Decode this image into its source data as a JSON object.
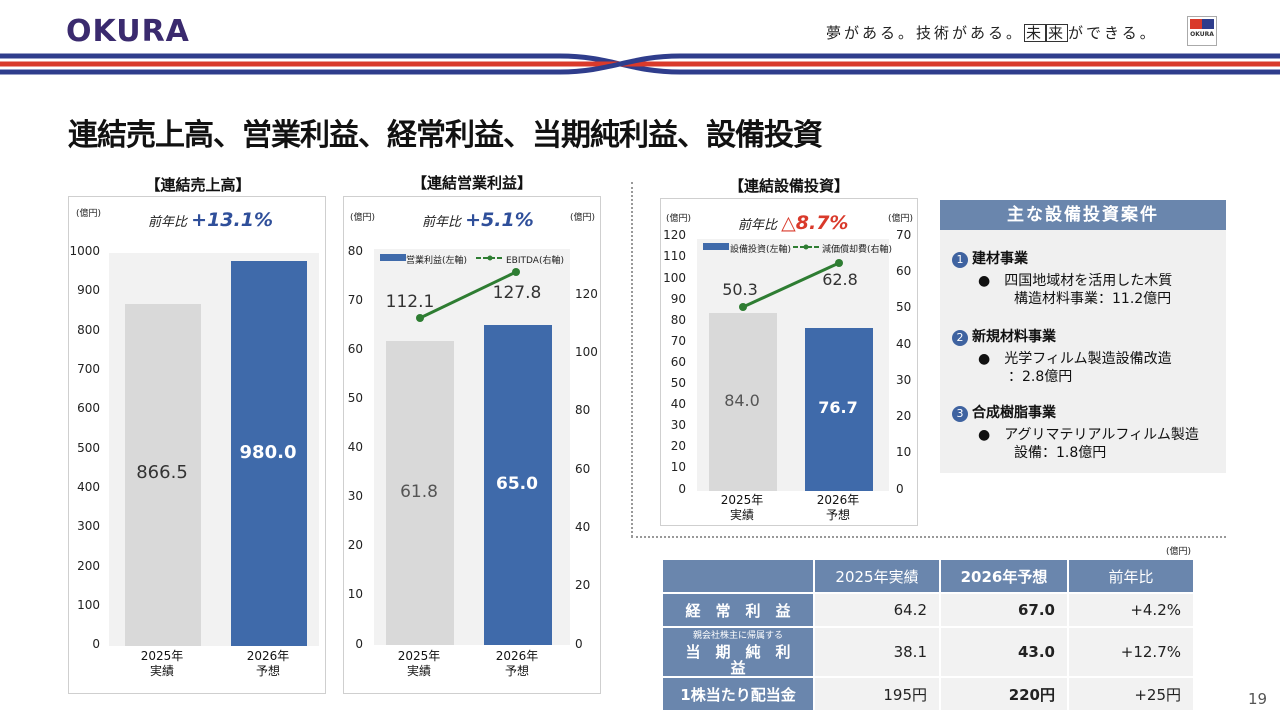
{
  "header": {
    "logo": "OKURA",
    "slogan_a": "夢がある。技術がある。",
    "slogan_b1": "未",
    "slogan_b2": "来",
    "slogan_c": "ができる。",
    "flag_text": "OKURA",
    "colors": {
      "navy": "#2f3d8c",
      "red": "#d93a2b"
    }
  },
  "title": "連結売上高、営業利益、経常利益、当期純利益、設備投資",
  "sales": {
    "title": "【連結売上高】",
    "unit": "(億円)",
    "yoy_label": "前年比",
    "yoy_value": "+13.1%",
    "ticks": [
      "1000",
      "900",
      "800",
      "700",
      "600",
      "500",
      "400",
      "300",
      "200",
      "100",
      "0"
    ],
    "cat1a": "2025年",
    "cat1b": "実績",
    "cat2a": "2026年",
    "cat2b": "予想",
    "val1": "866.5",
    "val2": "980.0"
  },
  "op": {
    "title": "【連結営業利益】",
    "unit_l": "(億円)",
    "unit_r": "(億円)",
    "yoy_label": "前年比",
    "yoy_value": "+5.1%",
    "legend_bar": "営業利益(左軸)",
    "legend_line": "EBITDA(右軸)",
    "ticks_l": [
      "80",
      "70",
      "60",
      "50",
      "40",
      "30",
      "20",
      "10",
      "0"
    ],
    "ticks_r": [
      "120",
      "100",
      "80",
      "60",
      "40",
      "20",
      "0"
    ],
    "cat1a": "2025年",
    "cat1b": "実績",
    "cat2a": "2026年",
    "cat2b": "予想",
    "bar1": "61.8",
    "bar2": "65.0",
    "line1": "112.1",
    "line2": "127.8"
  },
  "capex": {
    "title": "【連結設備投資】",
    "unit_l": "(億円)",
    "unit_r": "(億円)",
    "yoy_label": "前年比",
    "yoy_value": "△8.7%",
    "legend_bar": "設備投資(左軸)",
    "legend_line": "減価償却費(右軸)",
    "ticks_l": [
      "120",
      "110",
      "100",
      "90",
      "80",
      "70",
      "60",
      "50",
      "40",
      "30",
      "20",
      "10",
      "0"
    ],
    "ticks_r": [
      "70",
      "60",
      "50",
      "40",
      "30",
      "20",
      "10",
      "0"
    ],
    "cat1a": "2025年",
    "cat1b": "実績",
    "cat2a": "2026年",
    "cat2b": "予想",
    "bar1": "84.0",
    "bar2": "76.7",
    "line1": "50.3",
    "line2": "62.8"
  },
  "projects": {
    "header": "主な設備投資案件",
    "items": [
      {
        "num": "1",
        "head": "建材事業",
        "l1": "●　四国地域材を活用した木質",
        "l2": "構造材料事業：11.2億円"
      },
      {
        "num": "2",
        "head": "新規材料事業",
        "l1": "●　光学フィルム製造設備改造",
        "l2": "：2.8億円"
      },
      {
        "num": "3",
        "head": "合成樹脂事業",
        "l1": "●　アグリマテリアルフィルム製造",
        "l2": "設備：1.8億円"
      }
    ]
  },
  "table": {
    "unit": "(億円)",
    "headers": [
      "2025年実績",
      "2026年予想",
      "前年比"
    ],
    "rows": [
      {
        "label": "経　常　利　益",
        "label_small": "",
        "c1": "64.2",
        "c2": "67.0",
        "c3": "+4.2%"
      },
      {
        "label": "当　期　純　利　益",
        "label_small": "親会社株主に帰属する",
        "c1": "38.1",
        "c2": "43.0",
        "c3": "+12.7%"
      },
      {
        "label": "1株当たり配当金",
        "label_small": "",
        "c1": "195円",
        "c2": "220円",
        "c3": "+25円"
      }
    ]
  },
  "page_number": "19",
  "chart_data": [
    {
      "type": "bar",
      "title": "【連結売上高】",
      "categories": [
        "2025年 実績",
        "2026年 予想"
      ],
      "values": [
        866.5,
        980.0
      ],
      "ylabel": "(億円)",
      "ylim": [
        0,
        1000
      ]
    },
    {
      "type": "bar",
      "title": "【連結営業利益】",
      "categories": [
        "2025年 実績",
        "2026年 予想"
      ],
      "series": [
        {
          "name": "営業利益(左軸)",
          "values": [
            61.8,
            65.0
          ]
        },
        {
          "name": "EBITDA(右軸)",
          "values": [
            112.1,
            127.8
          ]
        }
      ],
      "ylim": [
        0,
        80
      ],
      "y2lim": [
        0,
        130
      ]
    },
    {
      "type": "bar",
      "title": "【連結設備投資】",
      "categories": [
        "2025年 実績",
        "2026年 予想"
      ],
      "series": [
        {
          "name": "設備投資(左軸)",
          "values": [
            84.0,
            76.7
          ]
        },
        {
          "name": "減価償却費(右軸)",
          "values": [
            50.3,
            62.8
          ]
        }
      ],
      "ylim": [
        0,
        120
      ],
      "y2lim": [
        0,
        70
      ]
    }
  ]
}
